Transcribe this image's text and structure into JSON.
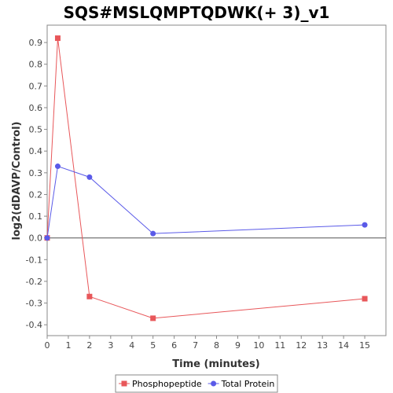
{
  "chart_data": {
    "type": "line",
    "title": "SQS#MSLQMPTQDWK(+ 3)_v1",
    "xlabel": "Time (minutes)",
    "ylabel": "log2(dDAVP/Control)",
    "xlim": [
      0,
      16
    ],
    "ylim": [
      -0.45,
      0.98
    ],
    "x_ticks": [
      0,
      1,
      2,
      3,
      4,
      5,
      6,
      7,
      8,
      9,
      10,
      11,
      12,
      13,
      14,
      15
    ],
    "y_ticks": [
      -0.4,
      -0.3,
      -0.2,
      -0.1,
      0.0,
      0.1,
      0.2,
      0.3,
      0.4,
      0.5,
      0.6,
      0.7,
      0.8,
      0.9
    ],
    "y_tick_labels": [
      "-0.4",
      "-0.3",
      "-0.2",
      "-0.1",
      "0.0",
      "0.1",
      "0.2",
      "0.3",
      "0.4",
      "0.5",
      "0.6",
      "0.7",
      "0.8",
      "0.9"
    ],
    "zero_line": true,
    "grid": false,
    "legend_position": "bottom-center",
    "series": [
      {
        "name": "Phosphopeptide",
        "color": "#e8575a",
        "marker": "square",
        "x": [
          0,
          0.5,
          2,
          5,
          15
        ],
        "y": [
          0.0,
          0.92,
          -0.27,
          -0.37,
          -0.28
        ]
      },
      {
        "name": "Total Protein",
        "color": "#5a5ae8",
        "marker": "circle",
        "x": [
          0,
          0.5,
          2,
          5,
          15
        ],
        "y": [
          0.0,
          0.33,
          0.28,
          0.02,
          0.06
        ]
      }
    ]
  }
}
